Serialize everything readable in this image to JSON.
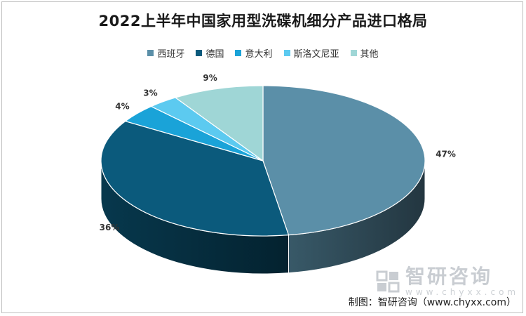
{
  "chart_data": {
    "type": "pie",
    "title": "2022上半年中国家用型洗碟机细分产品进口格局",
    "categories": [
      "西班牙",
      "德国",
      "意大利",
      "斯洛文尼亚",
      "其他"
    ],
    "values": [
      47,
      36,
      4,
      3,
      9
    ],
    "value_labels": [
      "47%",
      "36%",
      "4%",
      "3%",
      "9%"
    ],
    "colors": [
      "#5b8fa8",
      "#0b5a7c",
      "#1aa3d8",
      "#5ccaf0",
      "#9fd6d6"
    ],
    "legend_position": "top",
    "style": "3d"
  },
  "watermark": {
    "name": "智研咨询",
    "url": "www.chyxx.com"
  },
  "credit": "制图：智研咨询（www.chyxx.com）"
}
